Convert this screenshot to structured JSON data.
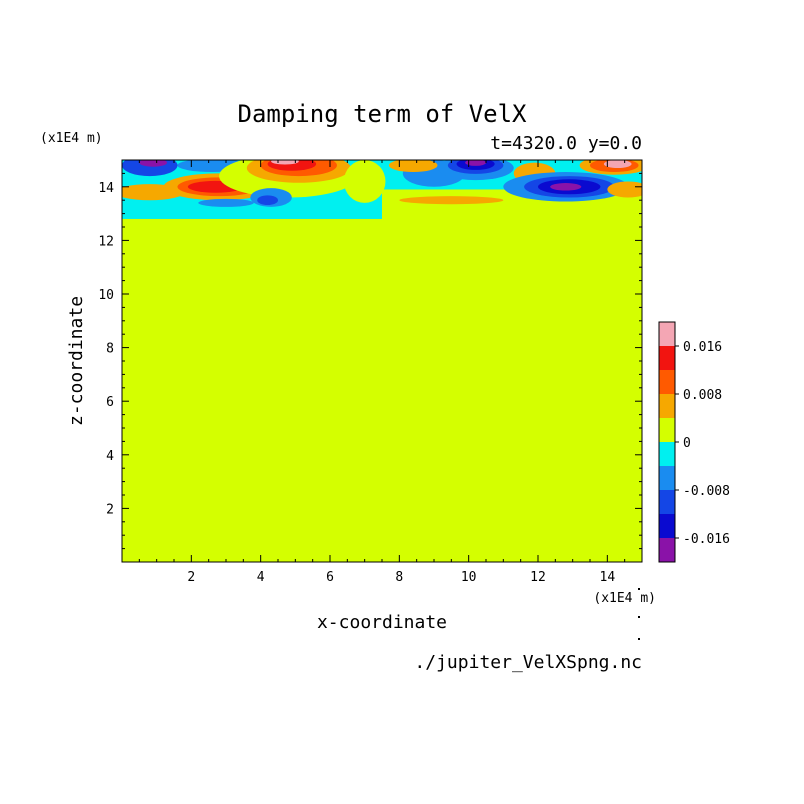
{
  "chart_data": {
    "type": "heatmap",
    "title": "Damping term of VelX",
    "subtitle": "t=4320.0 y=0.0",
    "xlabel": "x-coordinate",
    "ylabel": "z-coordinate",
    "x_unit": "(x1E4 m)",
    "y_unit": "(x1E4 m)",
    "source": "./jupiter_VelXSpng.nc",
    "xlim": [
      0,
      15
    ],
    "ylim": [
      0,
      15
    ],
    "x_ticks": [
      2,
      4,
      6,
      8,
      10,
      12,
      14
    ],
    "y_ticks": [
      2,
      4,
      6,
      8,
      10,
      12,
      14
    ],
    "x_tick_labels": [
      "2",
      "4",
      "6",
      "8",
      "10",
      "12",
      "14"
    ],
    "y_tick_labels": [
      "2",
      "4",
      "6",
      "8",
      "10",
      "12",
      "14"
    ],
    "background_value": 0,
    "colorbar": {
      "levels": [
        -0.02,
        -0.016,
        -0.012,
        -0.008,
        -0.004,
        0,
        0.004,
        0.008,
        0.012,
        0.016,
        0.02
      ],
      "colors": [
        "#8a12a8",
        "#0a0ad0",
        "#1446e6",
        "#1a8cf0",
        "#00f0f0",
        "#d4ff00",
        "#f6a800",
        "#ff5a00",
        "#f21410",
        "#f4a6b4"
      ],
      "tick_values": [
        0.016,
        0.008,
        0,
        -0.008,
        -0.016
      ],
      "tick_labels": [
        "0.016",
        "0.008",
        "0",
        "-0.008",
        "-0.016"
      ]
    },
    "regions": [
      {
        "kind": "rect",
        "x0": 0,
        "x1": 7.5,
        "z0": 12.8,
        "z1": 15,
        "value": -0.002
      },
      {
        "kind": "rect",
        "x0": 7.5,
        "x1": 15,
        "z0": 13.9,
        "z1": 15,
        "value": -0.002
      },
      {
        "kind": "blob",
        "cx": 0.8,
        "cz": 14.8,
        "rx": 0.8,
        "rz": 0.4,
        "value": -0.01
      },
      {
        "kind": "blob",
        "cx": 0.9,
        "cz": 14.9,
        "rx": 0.4,
        "rz": 0.15,
        "value": -0.02
      },
      {
        "kind": "blob",
        "cx": 0.8,
        "cz": 13.8,
        "rx": 1.0,
        "rz": 0.3,
        "value": 0.006
      },
      {
        "kind": "blob",
        "cx": 2.8,
        "cz": 14.0,
        "rx": 1.6,
        "rz": 0.5,
        "value": 0.006
      },
      {
        "kind": "blob",
        "cx": 2.8,
        "cz": 14.0,
        "rx": 1.2,
        "rz": 0.35,
        "value": 0.01
      },
      {
        "kind": "blob",
        "cx": 2.7,
        "cz": 14.0,
        "rx": 0.8,
        "rz": 0.22,
        "value": 0.014
      },
      {
        "kind": "blob",
        "cx": 2.6,
        "cz": 14.8,
        "rx": 1.0,
        "rz": 0.25,
        "value": -0.006
      },
      {
        "kind": "blob",
        "cx": 3.0,
        "cz": 13.4,
        "rx": 0.8,
        "rz": 0.15,
        "value": -0.006
      },
      {
        "kind": "blob",
        "cx": 4.8,
        "cz": 14.4,
        "rx": 2.0,
        "rz": 0.8,
        "value": 0.002
      },
      {
        "kind": "blob",
        "cx": 5.1,
        "cz": 14.7,
        "rx": 1.5,
        "rz": 0.55,
        "value": 0.006
      },
      {
        "kind": "blob",
        "cx": 5.1,
        "cz": 14.8,
        "rx": 1.1,
        "rz": 0.4,
        "value": 0.01
      },
      {
        "kind": "blob",
        "cx": 4.9,
        "cz": 14.85,
        "rx": 0.7,
        "rz": 0.25,
        "value": 0.014
      },
      {
        "kind": "blob",
        "cx": 4.7,
        "cz": 14.95,
        "rx": 0.4,
        "rz": 0.12,
        "value": 0.018
      },
      {
        "kind": "blob",
        "cx": 4.3,
        "cz": 13.6,
        "rx": 0.6,
        "rz": 0.35,
        "value": -0.006
      },
      {
        "kind": "blob",
        "cx": 4.2,
        "cz": 13.5,
        "rx": 0.3,
        "rz": 0.18,
        "value": -0.01
      },
      {
        "kind": "blob",
        "cx": 7.0,
        "cz": 14.2,
        "rx": 0.6,
        "rz": 0.8,
        "value": 0.002
      },
      {
        "kind": "blob",
        "cx": 9.0,
        "cz": 14.5,
        "rx": 0.9,
        "rz": 0.5,
        "value": -0.006
      },
      {
        "kind": "blob",
        "cx": 10.2,
        "cz": 14.7,
        "rx": 1.1,
        "rz": 0.45,
        "value": -0.006
      },
      {
        "kind": "blob",
        "cx": 10.2,
        "cz": 14.8,
        "rx": 0.8,
        "rz": 0.32,
        "value": -0.01
      },
      {
        "kind": "blob",
        "cx": 10.2,
        "cz": 14.85,
        "rx": 0.55,
        "rz": 0.22,
        "value": -0.014
      },
      {
        "kind": "blob",
        "cx": 10.2,
        "cz": 14.9,
        "rx": 0.3,
        "rz": 0.12,
        "value": -0.02
      },
      {
        "kind": "blob",
        "cx": 8.4,
        "cz": 14.8,
        "rx": 0.7,
        "rz": 0.25,
        "value": 0.006
      },
      {
        "kind": "blob",
        "cx": 11.9,
        "cz": 14.5,
        "rx": 0.6,
        "rz": 0.4,
        "value": 0.006
      },
      {
        "kind": "blob",
        "cx": 12.8,
        "cz": 14.0,
        "rx": 1.8,
        "rz": 0.55,
        "value": -0.006
      },
      {
        "kind": "blob",
        "cx": 12.9,
        "cz": 14.0,
        "rx": 1.3,
        "rz": 0.4,
        "value": -0.01
      },
      {
        "kind": "blob",
        "cx": 12.9,
        "cz": 14.0,
        "rx": 0.9,
        "rz": 0.28,
        "value": -0.014
      },
      {
        "kind": "blob",
        "cx": 12.8,
        "cz": 14.0,
        "rx": 0.45,
        "rz": 0.14,
        "value": -0.02
      },
      {
        "kind": "blob",
        "cx": 14.2,
        "cz": 14.8,
        "rx": 1.0,
        "rz": 0.35,
        "value": 0.006
      },
      {
        "kind": "blob",
        "cx": 14.2,
        "cz": 14.8,
        "rx": 0.7,
        "rz": 0.25,
        "value": 0.01
      },
      {
        "kind": "blob",
        "cx": 14.3,
        "cz": 14.85,
        "rx": 0.4,
        "rz": 0.15,
        "value": 0.018
      },
      {
        "kind": "blob",
        "cx": 14.6,
        "cz": 13.9,
        "rx": 0.6,
        "rz": 0.3,
        "value": 0.006
      },
      {
        "kind": "blob",
        "cx": 9.5,
        "cz": 13.5,
        "rx": 1.5,
        "rz": 0.15,
        "value": 0.004
      }
    ]
  }
}
